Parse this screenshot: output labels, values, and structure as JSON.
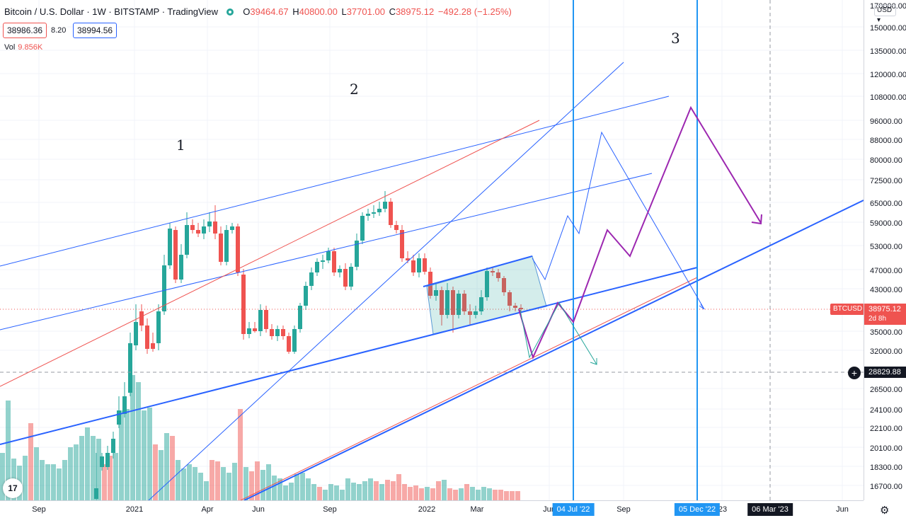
{
  "header": {
    "title": "Bitcoin / U.S. Dollar · 1W · BITSTAMP · TradingView",
    "o_label": "O",
    "o": "39464.67",
    "h_label": "H",
    "h": "40800.00",
    "l_label": "L",
    "l": "37701.00",
    "c_label": "C",
    "c": "38975.12",
    "change": "−492.28 (−1.25%)"
  },
  "quote": {
    "bid": "38986.36",
    "spread": "8.20",
    "ask": "38994.56"
  },
  "volume": {
    "label": "Vol",
    "value": "9.856K"
  },
  "currency_selector": "USD",
  "wave_labels": {
    "one": "1",
    "two": "2",
    "three": "3"
  },
  "symbol_tag": "BTCUSD",
  "last_price": {
    "value": "38975.12",
    "countdown": "2d 8h",
    "color": "#ef5350"
  },
  "crosshair_price": "28829.88",
  "price_axis": [
    "170000.00",
    "150000.00",
    "135000.00",
    "120000.00",
    "108000.00",
    "96000.00",
    "88000.00",
    "80000.00",
    "72500.00",
    "65000.00",
    "59000.00",
    "53000.00",
    "47000.00",
    "43000.00",
    "35000.00",
    "32000.00",
    "26500.00",
    "24100.00",
    "22100.00",
    "20100.00",
    "18300.00",
    "16700.00"
  ],
  "time_axis": [
    "Sep",
    "2021",
    "Apr",
    "Jun",
    "Sep",
    "2022",
    "Mar",
    "Jun",
    "Sep",
    "'23",
    "Jun"
  ],
  "time_badges": [
    {
      "label": "04 Jul '22",
      "color": "#2196f3"
    },
    {
      "label": "05 Dec '22",
      "color": "#2196f3"
    },
    {
      "label": "06 Mar '23",
      "color": "#131722"
    }
  ],
  "colors": {
    "up": "#26a69a",
    "down": "#ef5350",
    "blue_line": "#2962ff",
    "purple": "#9c27b0",
    "vline": "#2196f3"
  },
  "logo_text": "17",
  "settings_icon": "gear-icon"
}
